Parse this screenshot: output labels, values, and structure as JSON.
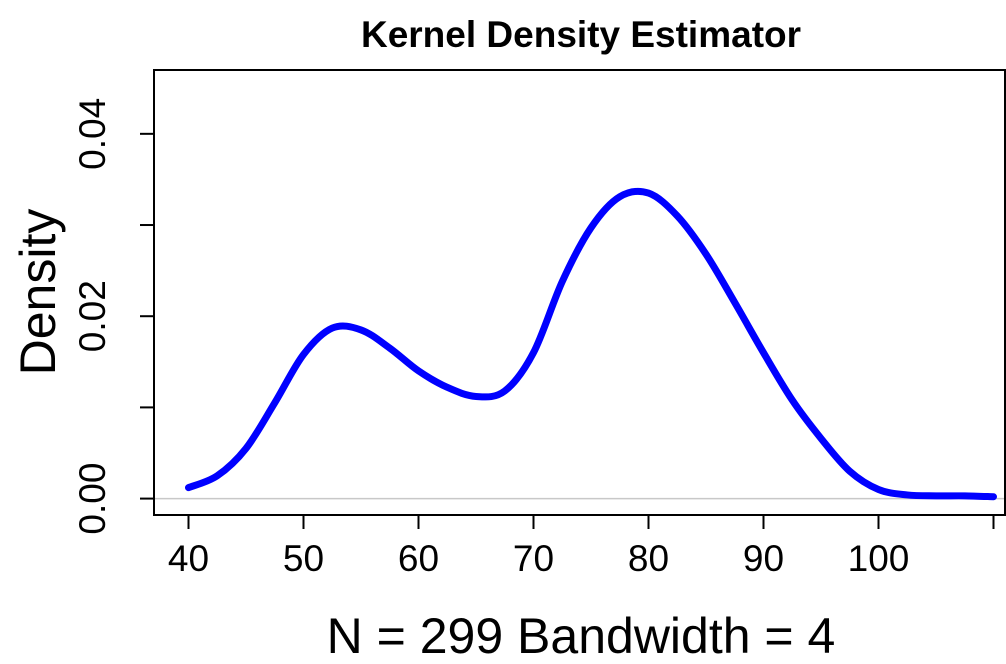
{
  "chart_data": {
    "type": "line",
    "title": "Kernel Density Estimator",
    "xlabel": "N = 299   Bandwidth = 4",
    "ylabel": "Density",
    "xlim": [
      37,
      111
    ],
    "ylim": [
      -0.0018,
      0.047
    ],
    "x_ticks": [
      40,
      50,
      60,
      70,
      80,
      90,
      100,
      110
    ],
    "x_tick_labels": [
      "40",
      "50",
      "60",
      "70",
      "80",
      "90",
      "100",
      ""
    ],
    "y_ticks": [
      0,
      0.01,
      0.02,
      0.03,
      0.04
    ],
    "y_tick_labels": [
      "0.00",
      "",
      "0.02",
      "",
      "0.04"
    ],
    "baseline": 0,
    "grid": false,
    "legend": "none",
    "series": [
      {
        "color": "#0000ff",
        "x": [
          40,
          42.5,
          45,
          47.5,
          50,
          52.5,
          55,
          57.5,
          60,
          62.5,
          65,
          67.5,
          70,
          72.5,
          75,
          77.5,
          80,
          82.5,
          85,
          87.5,
          90,
          92.5,
          95,
          97.5,
          100,
          102.5,
          105,
          107.5,
          110
        ],
        "y": [
          0.0012,
          0.0025,
          0.0055,
          0.0105,
          0.0158,
          0.0187,
          0.0185,
          0.0165,
          0.014,
          0.0122,
          0.0112,
          0.0118,
          0.016,
          0.0238,
          0.0297,
          0.0331,
          0.0335,
          0.031,
          0.0268,
          0.0215,
          0.016,
          0.0108,
          0.0066,
          0.003,
          0.001,
          0.0004,
          0.0003,
          0.0003,
          0.0002
        ]
      }
    ]
  }
}
